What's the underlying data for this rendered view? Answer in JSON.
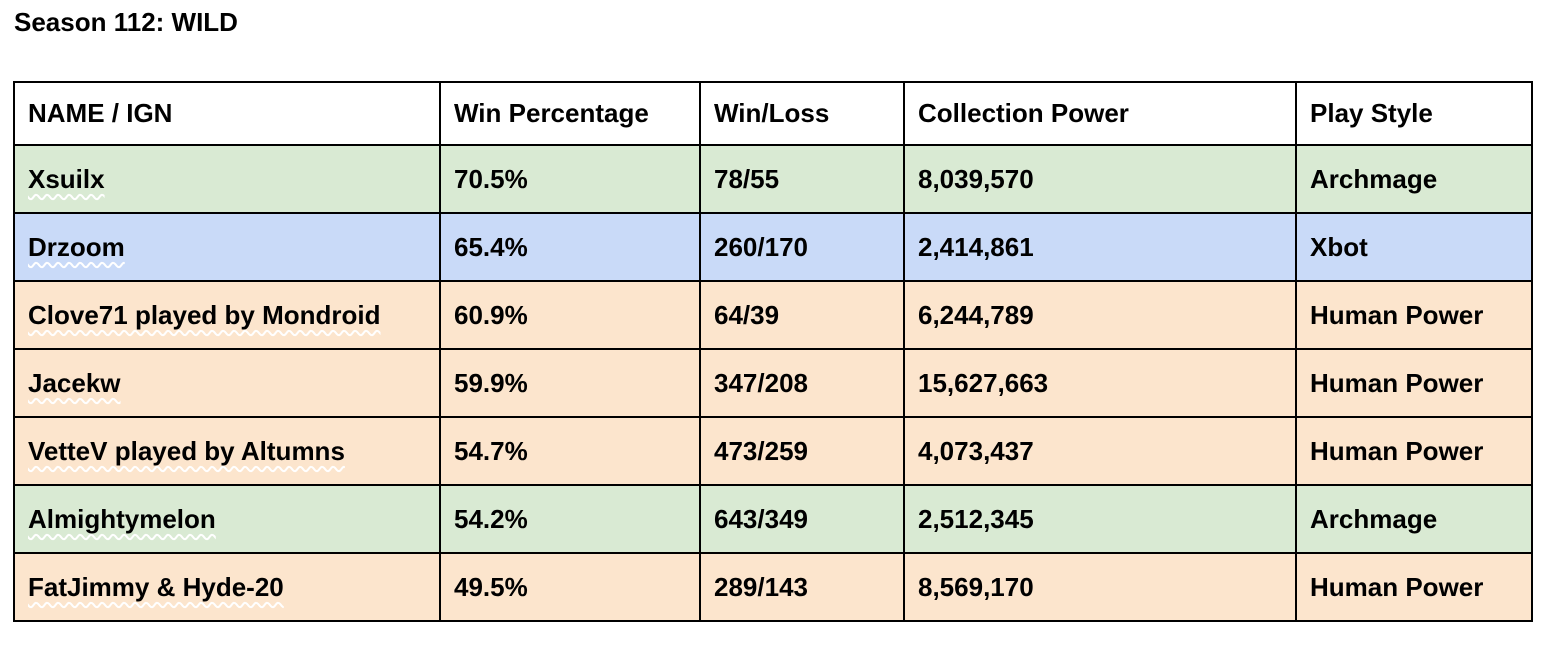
{
  "title": "Season 112: WILD",
  "colors": {
    "archmage_row": "#d9ead3",
    "xbot_row": "#c9daf8",
    "human_power_row": "#fce5cd",
    "border": "#000000"
  },
  "table": {
    "headers": [
      "NAME / IGN",
      "Win Percentage",
      "Win/Loss",
      "Collection Power",
      "Play Style"
    ],
    "rows": [
      {
        "name": "Xsuilx",
        "win_percentage": "70.5%",
        "win_loss": "78/55",
        "collection_power": "8,039,570",
        "play_style": "Archmage"
      },
      {
        "name": "Drzoom",
        "win_percentage": "65.4%",
        "win_loss": "260/170",
        "collection_power": "2,414,861",
        "play_style": "Xbot"
      },
      {
        "name": "Clove71 played by Mondroid",
        "win_percentage": "60.9%",
        "win_loss": "64/39",
        "collection_power": "6,244,789",
        "play_style": "Human Power"
      },
      {
        "name": "Jacekw",
        "win_percentage": "59.9%",
        "win_loss": "347/208",
        "collection_power": "15,627,663",
        "play_style": "Human Power"
      },
      {
        "name": "VetteV played by Altumns",
        "win_percentage": "54.7%",
        "win_loss": "473/259",
        "collection_power": "4,073,437",
        "play_style": "Human Power"
      },
      {
        "name": "Almightymelon",
        "win_percentage": "54.2%",
        "win_loss": "643/349",
        "collection_power": "2,512,345",
        "play_style": "Archmage"
      },
      {
        "name": "FatJimmy & Hyde-20",
        "win_percentage": "49.5%",
        "win_loss": "289/143",
        "collection_power": "8,569,170",
        "play_style": "Human Power"
      }
    ]
  }
}
